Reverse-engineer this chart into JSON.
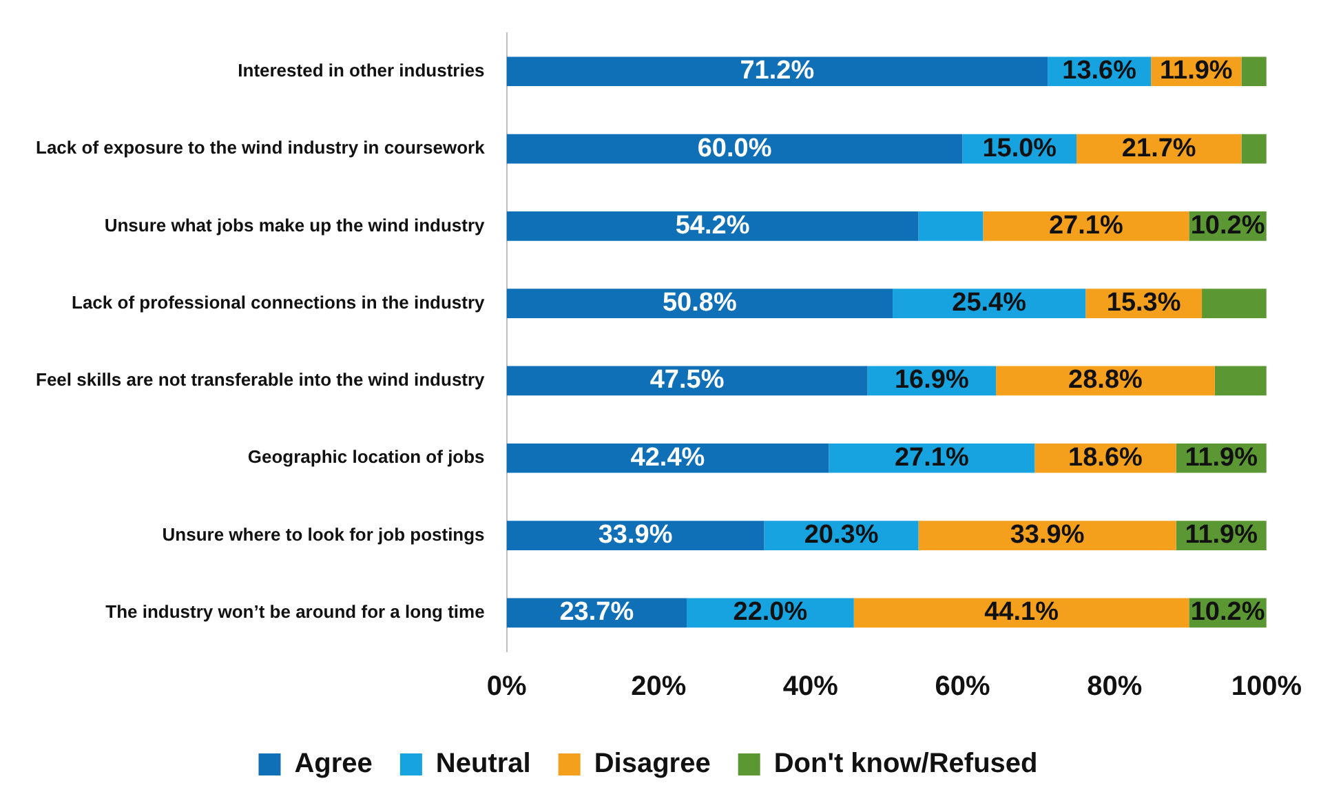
{
  "chart_data": {
    "type": "bar",
    "orientation": "horizontal",
    "stacked": true,
    "categories": [
      "Interested in other industries",
      "Lack of exposure to the wind industry in coursework",
      "Unsure what jobs make up the wind industry",
      "Lack of professional connections in the industry",
      "Feel skills are not transferable into the wind industry",
      "Geographic location of jobs",
      "Unsure where to look for job postings",
      "The industry won’t be around for a long time"
    ],
    "series": [
      {
        "name": "Agree",
        "color": "#0f6fb7",
        "values": [
          71.2,
          60.0,
          54.2,
          50.8,
          47.5,
          42.4,
          33.9,
          23.7
        ],
        "value_labels": [
          "71.2%",
          "60.0%",
          "54.2%",
          "50.8%",
          "47.5%",
          "42.4%",
          "33.9%",
          "23.7%"
        ]
      },
      {
        "name": "Neutral",
        "color": "#17a2e0",
        "values": [
          13.6,
          15.0,
          8.5,
          25.4,
          16.9,
          27.1,
          20.3,
          22.0
        ],
        "value_labels": [
          "13.6%",
          "15.0%",
          null,
          "25.4%",
          "16.9%",
          "27.1%",
          "20.3%",
          "22.0%"
        ]
      },
      {
        "name": "Disagree",
        "color": "#f5a01c",
        "values": [
          11.9,
          21.7,
          27.1,
          15.3,
          28.8,
          18.6,
          33.9,
          44.1
        ],
        "value_labels": [
          "11.9%",
          "21.7%",
          "27.1%",
          "15.3%",
          "28.8%",
          "18.6%",
          "33.9%",
          "44.1%"
        ]
      },
      {
        "name": "Don't know/Refused",
        "color": "#5b9733",
        "values": [
          3.3,
          3.3,
          10.2,
          8.5,
          6.8,
          11.9,
          11.9,
          10.2
        ],
        "value_labels": [
          null,
          null,
          "10.2%",
          null,
          null,
          "11.9%",
          "11.9%",
          "10.2%"
        ]
      }
    ],
    "xlim": [
      0,
      100
    ],
    "xticks": [
      {
        "value": 0,
        "label": "0%"
      },
      {
        "value": 20,
        "label": "20%"
      },
      {
        "value": 40,
        "label": "40%"
      },
      {
        "value": 60,
        "label": "60%"
      },
      {
        "value": 80,
        "label": "80%"
      },
      {
        "value": 100,
        "label": "100%"
      }
    ],
    "grid": false,
    "legend": "bottom"
  }
}
